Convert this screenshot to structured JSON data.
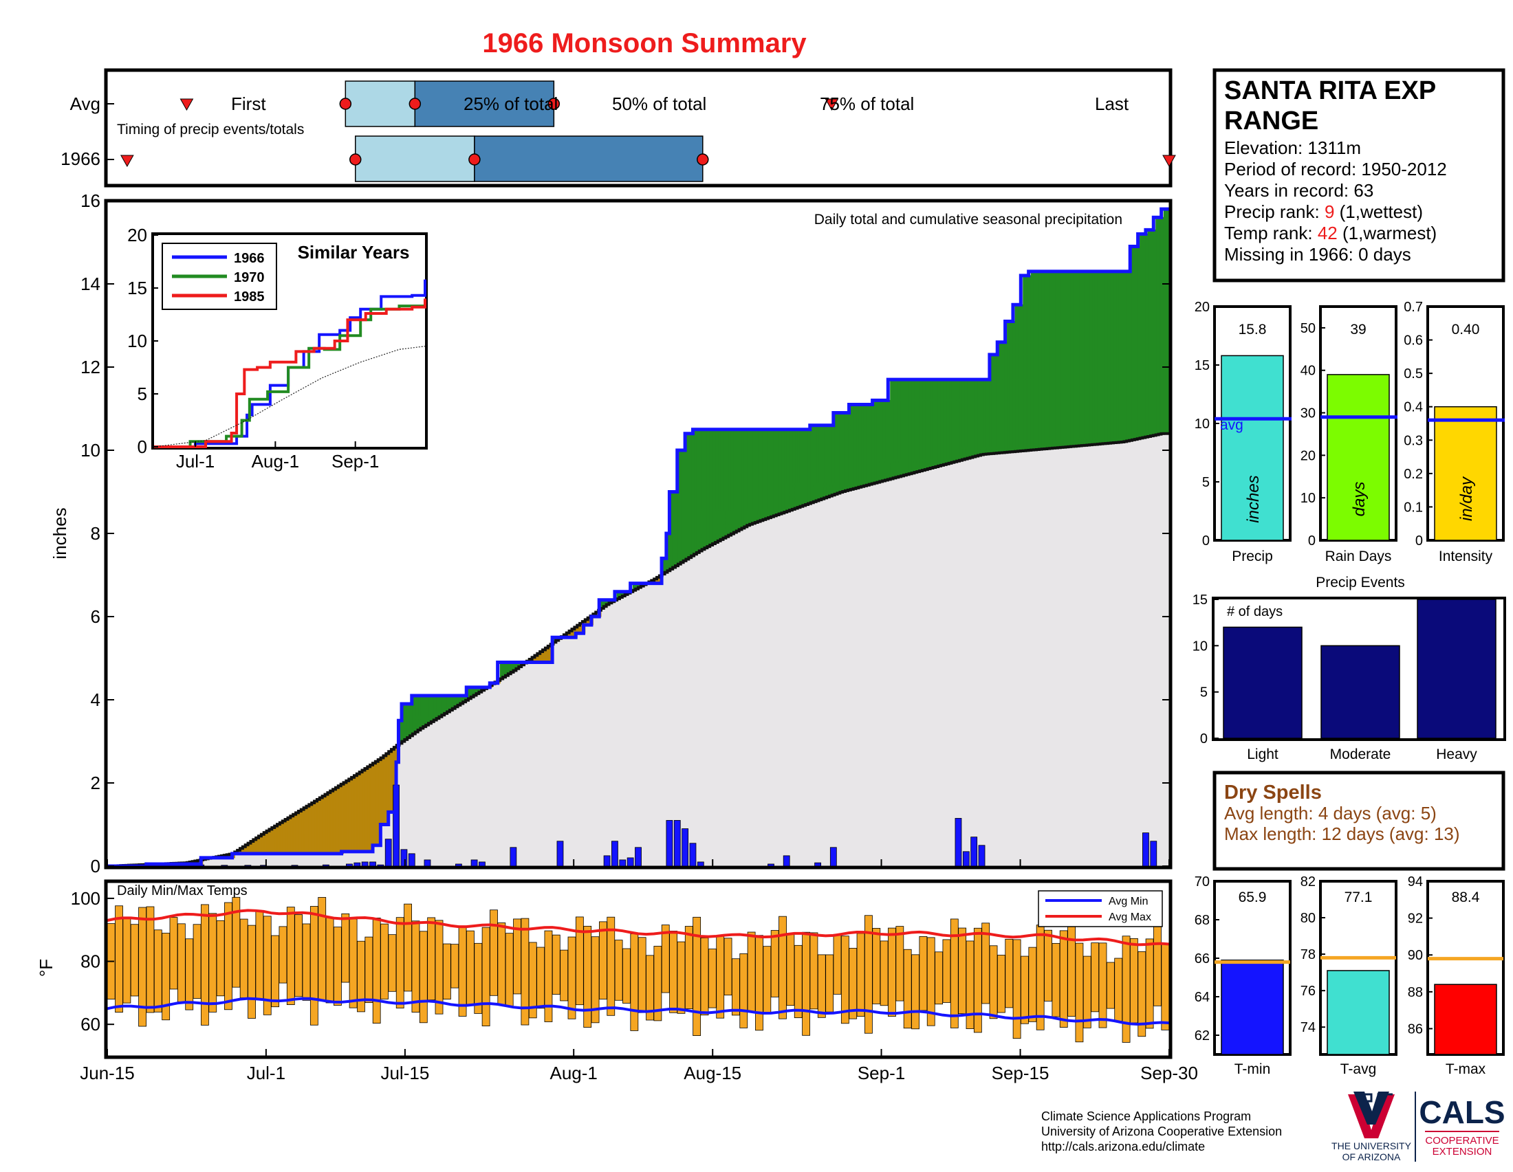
{
  "title": "1966 Monsoon Summary",
  "timing": {
    "row_labels": [
      "Avg",
      "1966"
    ],
    "first_label": "First",
    "last_label": "Last",
    "note": "Timing of precip events/totals",
    "q25_label": "25% of total",
    "q50_label": "50% of total",
    "q75_label": "75% of total",
    "avg_days": {
      "first": 8,
      "q25": 24,
      "q50": 31,
      "q75": 45,
      "last": 73
    },
    "y1966_days": {
      "first": 2,
      "q25": 25,
      "q50": 37,
      "q75": 60,
      "last": 107
    }
  },
  "station": {
    "name": "SANTA RITA EXP RANGE",
    "lines": [
      {
        "text": "Elevation: 1311m"
      },
      {
        "text": "Period of record: 1950-2012"
      },
      {
        "text": "Years in record: 63"
      },
      {
        "pre": "Precip rank: ",
        "hl": "9",
        "post": " (1,wettest)"
      },
      {
        "pre": "Temp rank: ",
        "hl": "42",
        "post": " (1,warmest)"
      },
      {
        "text": "Missing in 1966: 0 days"
      }
    ]
  },
  "colors": {
    "title": "#ee1c1c",
    "obs": "#1414ff",
    "avg_line": "#111111",
    "wetter": "#228b22",
    "drier": "#b8860b",
    "avg_fill": "#e8e6e8",
    "tmax": "#ee1c1c",
    "tmin": "#1414ff",
    "temp_bar": "#f5a623",
    "q_light": "#add8e6",
    "q_dark": "#4682b4",
    "navy": "#0a0a7a",
    "dry": "#8b4513",
    "orange_line": "#f5a623"
  },
  "main_chart": {
    "subtitle": "Daily total and cumulative seasonal precipitation",
    "ylabel": "inches",
    "yticks": [
      "0",
      "2",
      "4",
      "6",
      "8",
      "10",
      "12",
      "14",
      "16"
    ],
    "xticks": [
      "Jun-15",
      "Jul-1",
      "Jul-15",
      "Aug-1",
      "Aug-15",
      "Sep-1",
      "Sep-15",
      "Sep-30"
    ]
  },
  "inset": {
    "title": "Similar Years",
    "legend": [
      "1966",
      "1970",
      "1985"
    ],
    "yticks": [
      "0",
      "5",
      "10",
      "15",
      "20"
    ],
    "xticks": [
      "Jul-1",
      "Aug-1",
      "Sep-1"
    ]
  },
  "temp_chart": {
    "title": "Daily Min/Max Temps",
    "ylabel": "°F",
    "yticks": [
      "60",
      "80",
      "100"
    ],
    "legend": [
      "Avg Min",
      "Avg Max"
    ]
  },
  "summary_bars": [
    {
      "label": "Precip",
      "unit": "inches",
      "value_label": "15.8",
      "value": 15.8,
      "avg": 10.4,
      "avg_label": "avg",
      "ymax": 20,
      "ticks": [
        "0",
        "5",
        "10",
        "15",
        "20"
      ],
      "color": "#40e0d0"
    },
    {
      "label": "Rain Days",
      "unit": "days",
      "value_label": "39",
      "value": 39,
      "avg": 29,
      "ymax": 55,
      "ticks": [
        "0",
        "10",
        "20",
        "30",
        "40",
        "50"
      ],
      "color": "#7cfc00"
    },
    {
      "label": "Intensity",
      "unit": "in/day",
      "value_label": "0.40",
      "value": 0.4,
      "avg": 0.36,
      "ymax": 0.7,
      "ticks": [
        "0",
        "0.1",
        "0.2",
        "0.3",
        "0.4",
        "0.5",
        "0.6",
        "0.7"
      ],
      "color": "#ffd700"
    }
  ],
  "events": {
    "title": "Precip Events",
    "ylabel": "# of days",
    "yticks": [
      "0",
      "5",
      "10",
      "15"
    ],
    "categories": [
      "Light",
      "Moderate",
      "Heavy"
    ],
    "values": [
      12,
      10,
      15
    ]
  },
  "dry_spells": {
    "title": "Dry Spells",
    "lines": [
      "Avg length: 4 days (avg: 5)",
      "Max length: 12 days (avg: 13)"
    ]
  },
  "temp_bars": [
    {
      "label": "T-min",
      "value_label": "65.9",
      "value": 65.9,
      "avg": 65.8,
      "ymin": 61,
      "ymax": 70,
      "ticks": [
        "62",
        "64",
        "66",
        "68",
        "70"
      ],
      "color": "#1414ff"
    },
    {
      "label": "T-avg",
      "value_label": "77.1",
      "value": 77.1,
      "avg": 77.8,
      "ymin": 72.5,
      "ymax": 82,
      "ticks": [
        "74",
        "76",
        "78",
        "80",
        "82"
      ],
      "color": "#40e0d0"
    },
    {
      "label": "T-max",
      "value_label": "88.4",
      "value": 88.4,
      "avg": 89.8,
      "ymin": 84.6,
      "ymax": 94,
      "ticks": [
        "86",
        "88",
        "90",
        "92",
        "94"
      ],
      "color": "#ff0000"
    }
  ],
  "footer": {
    "lines": [
      "Climate Science Applications Program",
      "University of Arizona Cooperative Extension",
      "http://cals.arizona.edu/climate"
    ],
    "ua_line1": "THE UNIVERSITY",
    "ua_line2": "OF ARIZONA",
    "cals": "CALS",
    "cals_sub1": "COOPERATIVE",
    "cals_sub2": "EXTENSION"
  },
  "chart_data": [
    {
      "type": "area",
      "title": "Daily total and cumulative seasonal precipitation",
      "ylabel": "inches",
      "ylim": [
        0,
        16
      ],
      "x_range": [
        "Jun-15",
        "Sep-30"
      ],
      "series": [
        {
          "name": "1966",
          "cumulative_steps": [
            [
              0,
              0
            ],
            [
              5,
              0.05
            ],
            [
              12,
              0.2
            ],
            [
              16,
              0.3
            ],
            [
              26,
              0.3
            ],
            [
              30,
              0.35
            ],
            [
              34,
              0.5
            ],
            [
              35,
              1.0
            ],
            [
              36,
              1.3
            ],
            [
              37,
              2.5
            ],
            [
              37.3,
              3.5
            ],
            [
              37.7,
              3.9
            ],
            [
              39,
              4.1
            ],
            [
              44,
              4.1
            ],
            [
              46,
              4.3
            ],
            [
              49,
              4.4
            ],
            [
              50,
              4.9
            ],
            [
              56,
              4.9
            ],
            [
              57,
              5.5
            ],
            [
              60,
              5.6
            ],
            [
              61,
              5.8
            ],
            [
              62,
              6.0
            ],
            [
              63,
              6.4
            ],
            [
              65,
              6.6
            ],
            [
              67,
              6.8
            ],
            [
              70,
              6.8
            ],
            [
              71,
              7.4
            ],
            [
              71.6,
              8.0
            ],
            [
              72,
              9.0
            ],
            [
              73,
              10.0
            ],
            [
              74,
              10.4
            ],
            [
              75,
              10.5
            ],
            [
              84,
              10.5
            ],
            [
              90,
              10.6
            ],
            [
              93,
              10.9
            ],
            [
              95,
              11.1
            ],
            [
              98,
              11.2
            ],
            [
              100,
              11.7
            ],
            [
              112,
              11.7
            ],
            [
              113,
              12.3
            ],
            [
              114,
              12.6
            ],
            [
              115,
              13.1
            ],
            [
              116,
              13.5
            ],
            [
              117,
              14.2
            ],
            [
              118,
              14.3
            ],
            [
              130,
              14.3
            ],
            [
              131,
              14.9
            ],
            [
              132,
              15.2
            ],
            [
              133,
              15.3
            ],
            [
              134,
              15.6
            ],
            [
              135,
              15.8
            ]
          ]
        },
        {
          "name": "Avg",
          "cumulative_points": [
            [
              0,
              0
            ],
            [
              10,
              0.08
            ],
            [
              16,
              0.3
            ],
            [
              20,
              0.8
            ],
            [
              26,
              1.5
            ],
            [
              31,
              2.1
            ],
            [
              35,
              2.6
            ],
            [
              37,
              2.9
            ],
            [
              40,
              3.3
            ],
            [
              46,
              4.0
            ],
            [
              52,
              4.7
            ],
            [
              58,
              5.5
            ],
            [
              64,
              6.3
            ],
            [
              70,
              6.9
            ],
            [
              76,
              7.6
            ],
            [
              82,
              8.2
            ],
            [
              88,
              8.6
            ],
            [
              94,
              9.0
            ],
            [
              100,
              9.3
            ],
            [
              106,
              9.6
            ],
            [
              112,
              9.9
            ],
            [
              118,
              10.0
            ],
            [
              124,
              10.1
            ],
            [
              130,
              10.2
            ],
            [
              135,
              10.4
            ]
          ]
        },
        {
          "name": "1966 daily",
          "daily": [
            [
              1,
              0.01
            ],
            [
              5,
              0.02
            ],
            [
              9,
              0.02
            ],
            [
              12,
              0.03
            ],
            [
              15,
              0.02
            ],
            [
              18,
              0.02
            ],
            [
              20,
              0.02
            ],
            [
              24,
              0.02
            ],
            [
              28,
              0.03
            ],
            [
              31,
              0.05
            ],
            [
              32,
              0.08
            ],
            [
              33,
              0.1
            ],
            [
              34,
              0.1
            ],
            [
              35,
              0.03
            ],
            [
              36,
              0.65
            ],
            [
              37,
              1.95
            ],
            [
              38,
              0.4
            ],
            [
              39,
              0.3
            ],
            [
              41,
              0.15
            ],
            [
              45,
              0.05
            ],
            [
              47,
              0.15
            ],
            [
              48,
              0.1
            ],
            [
              52,
              0.45
            ],
            [
              58,
              0.6
            ],
            [
              64,
              0.25
            ],
            [
              65,
              0.6
            ],
            [
              66,
              0.15
            ],
            [
              67,
              0.2
            ],
            [
              68,
              0.45
            ],
            [
              72,
              1.1
            ],
            [
              73,
              1.1
            ],
            [
              74,
              0.9
            ],
            [
              75,
              0.55
            ],
            [
              76,
              0.1
            ],
            [
              85,
              0.05
            ],
            [
              87,
              0.25
            ],
            [
              91,
              0.08
            ],
            [
              93,
              0.45
            ],
            [
              109,
              1.15
            ],
            [
              110,
              0.35
            ],
            [
              111,
              0.7
            ],
            [
              112,
              0.5
            ],
            [
              133,
              0.8
            ],
            [
              134,
              0.6
            ]
          ]
        }
      ]
    },
    {
      "type": "line",
      "title": "Similar Years",
      "ylim": [
        0,
        20
      ],
      "xticks": [
        "Jul-1",
        "Aug-1",
        "Sep-1"
      ],
      "series": [
        {
          "name": "1966",
          "points": [
            [
              0,
              0
            ],
            [
              16,
              0.3
            ],
            [
              32,
              1
            ],
            [
              36,
              3
            ],
            [
              38,
              4
            ],
            [
              45,
              5.8
            ],
            [
              52,
              7.5
            ],
            [
              58,
              9
            ],
            [
              64,
              10.6
            ],
            [
              72,
              11
            ],
            [
              76,
              12.2
            ],
            [
              80,
              13
            ],
            [
              88,
              14.2
            ],
            [
              100,
              14.3
            ],
            [
              105,
              15.8
            ]
          ]
        },
        {
          "name": "1970",
          "points": [
            [
              0,
              0
            ],
            [
              14,
              0.5
            ],
            [
              28,
              1
            ],
            [
              34,
              2.5
            ],
            [
              37,
              4.5
            ],
            [
              44,
              5.2
            ],
            [
              52,
              7.5
            ],
            [
              60,
              9.3
            ],
            [
              66,
              9.2
            ],
            [
              72,
              10.5
            ],
            [
              80,
              12
            ],
            [
              84,
              13
            ],
            [
              95,
              13.3
            ],
            [
              105,
              13.5
            ]
          ]
        },
        {
          "name": "1985",
          "points": [
            [
              0,
              0
            ],
            [
              20,
              0.5
            ],
            [
              30,
              1.3
            ],
            [
              32,
              5
            ],
            [
              35,
              7.3
            ],
            [
              40,
              7.5
            ],
            [
              45,
              8
            ],
            [
              55,
              9
            ],
            [
              62,
              9.3
            ],
            [
              70,
              10
            ],
            [
              75,
              12
            ],
            [
              82,
              12.6
            ],
            [
              90,
              13
            ],
            [
              100,
              13.2
            ],
            [
              105,
              14
            ]
          ]
        },
        {
          "name": "Avg",
          "points": [
            [
              0,
              0
            ],
            [
              20,
              0.6
            ],
            [
              35,
              2.4
            ],
            [
              50,
              4.5
            ],
            [
              65,
              6.5
            ],
            [
              80,
              8
            ],
            [
              95,
              9.2
            ],
            [
              105,
              9.5
            ]
          ]
        }
      ]
    },
    {
      "type": "bar",
      "title": "Daily Min/Max Temps",
      "ylabel": "°F",
      "ylim": [
        50,
        105
      ],
      "avg_max": [
        [
          0,
          93
        ],
        [
          20,
          96
        ],
        [
          40,
          92
        ],
        [
          60,
          90
        ],
        [
          80,
          88
        ],
        [
          100,
          89
        ],
        [
          120,
          88
        ],
        [
          136,
          85
        ]
      ],
      "avg_min": [
        [
          0,
          65
        ],
        [
          20,
          68
        ],
        [
          40,
          67
        ],
        [
          60,
          65
        ],
        [
          80,
          64
        ],
        [
          100,
          64
        ],
        [
          120,
          62
        ],
        [
          136,
          60
        ]
      ]
    },
    {
      "type": "bar",
      "title": "Precip Events",
      "ylabel": "# of days",
      "categories": [
        "Light",
        "Moderate",
        "Heavy"
      ],
      "values": [
        12,
        10,
        15
      ],
      "ylim": [
        0,
        15
      ]
    }
  ]
}
